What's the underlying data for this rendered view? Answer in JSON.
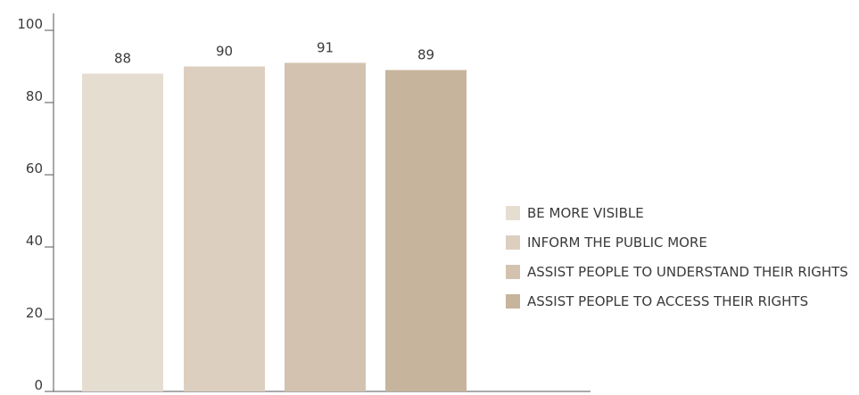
{
  "chart_data": {
    "type": "bar",
    "series": [
      {
        "name": "BE MORE VISIBLE",
        "value": 88,
        "color": "#e6ddd1"
      },
      {
        "name": "INFORM THE PUBLIC MORE",
        "value": 90,
        "color": "#ddcfc0"
      },
      {
        "name": "ASSIST PEOPLE TO UNDERSTAND THEIR RIGHTS",
        "value": 91,
        "color": "#d4c2b0"
      },
      {
        "name": "ASSIST PEOPLE TO ACCESS THEIR RIGHTS",
        "value": 89,
        "color": "#c7b49c"
      }
    ],
    "ylim": [
      0,
      100
    ],
    "yticks": [
      "0",
      "20",
      "40",
      "60",
      "80",
      "100"
    ],
    "title": "",
    "xlabel": "",
    "ylabel": "",
    "legend_position": "right",
    "grid": false
  }
}
